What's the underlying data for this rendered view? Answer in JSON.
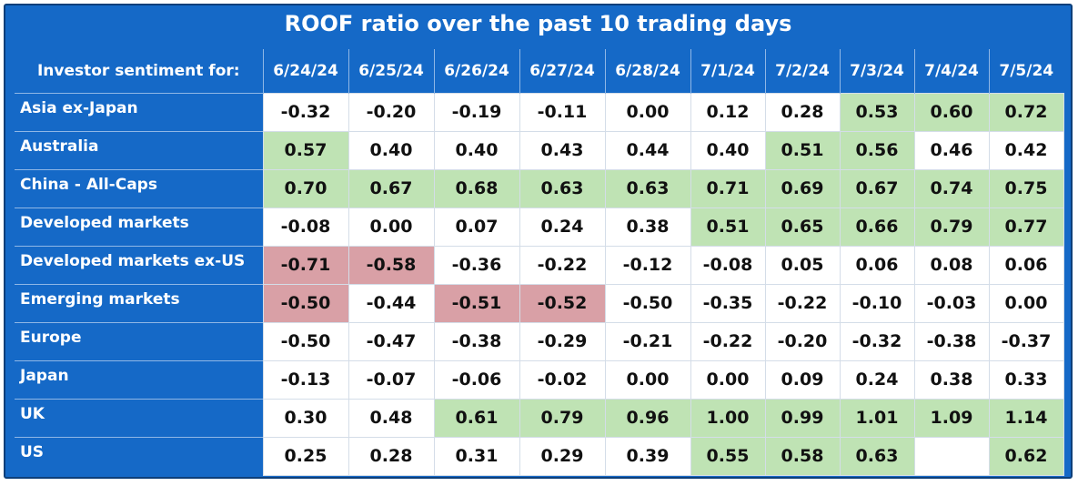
{
  "chart_data": {
    "type": "table",
    "title": "ROOF ratio over the past 10 trading days",
    "corner_label": "Investor sentiment for:",
    "columns": [
      "6/24/24",
      "6/25/24",
      "6/26/24",
      "6/27/24",
      "6/28/24",
      "7/1/24",
      "7/2/24",
      "7/3/24",
      "7/4/24",
      "7/5/24"
    ],
    "rows": [
      {
        "label": "Asia ex-Japan",
        "values": [
          "-0.32",
          "-0.20",
          "-0.19",
          "-0.11",
          "0.00",
          "0.12",
          "0.28",
          "0.53",
          "0.60",
          "0.72"
        ],
        "highlight": [
          "",
          "",
          "",
          "",
          "",
          "",
          "",
          "pos",
          "pos",
          "pos"
        ]
      },
      {
        "label": "Australia",
        "values": [
          "0.57",
          "0.40",
          "0.40",
          "0.43",
          "0.44",
          "0.40",
          "0.51",
          "0.56",
          "0.46",
          "0.42"
        ],
        "highlight": [
          "pos",
          "",
          "",
          "",
          "",
          "",
          "pos",
          "pos",
          "",
          ""
        ]
      },
      {
        "label": "China - All-Caps",
        "values": [
          "0.70",
          "0.67",
          "0.68",
          "0.63",
          "0.63",
          "0.71",
          "0.69",
          "0.67",
          "0.74",
          "0.75"
        ],
        "highlight": [
          "pos",
          "pos",
          "pos",
          "pos",
          "pos",
          "pos",
          "pos",
          "pos",
          "pos",
          "pos"
        ]
      },
      {
        "label": "Developed markets",
        "values": [
          "-0.08",
          "0.00",
          "0.07",
          "0.24",
          "0.38",
          "0.51",
          "0.65",
          "0.66",
          "0.79",
          "0.77"
        ],
        "highlight": [
          "",
          "",
          "",
          "",
          "",
          "pos",
          "pos",
          "pos",
          "pos",
          "pos"
        ]
      },
      {
        "label": "Developed markets ex-US",
        "values": [
          "-0.71",
          "-0.58",
          "-0.36",
          "-0.22",
          "-0.12",
          "-0.08",
          "0.05",
          "0.06",
          "0.08",
          "0.06"
        ],
        "highlight": [
          "neg",
          "neg",
          "",
          "",
          "",
          "",
          "",
          "",
          "",
          ""
        ]
      },
      {
        "label": "Emerging markets",
        "values": [
          "-0.50",
          "-0.44",
          "-0.51",
          "-0.52",
          "-0.50",
          "-0.35",
          "-0.22",
          "-0.10",
          "-0.03",
          "0.00"
        ],
        "highlight": [
          "neg",
          "",
          "neg",
          "neg",
          "",
          "",
          "",
          "",
          "",
          ""
        ]
      },
      {
        "label": "Europe",
        "values": [
          "-0.50",
          "-0.47",
          "-0.38",
          "-0.29",
          "-0.21",
          "-0.22",
          "-0.20",
          "-0.32",
          "-0.38",
          "-0.37"
        ],
        "highlight": [
          "",
          "",
          "",
          "",
          "",
          "",
          "",
          "",
          "",
          ""
        ]
      },
      {
        "label": "Japan",
        "values": [
          "-0.13",
          "-0.07",
          "-0.06",
          "-0.02",
          "0.00",
          "0.00",
          "0.09",
          "0.24",
          "0.38",
          "0.33"
        ],
        "highlight": [
          "",
          "",
          "",
          "",
          "",
          "",
          "",
          "",
          "",
          ""
        ]
      },
      {
        "label": "UK",
        "values": [
          "0.30",
          "0.48",
          "0.61",
          "0.79",
          "0.96",
          "1.00",
          "0.99",
          "1.01",
          "1.09",
          "1.14"
        ],
        "highlight": [
          "",
          "",
          "pos",
          "pos",
          "pos",
          "pos",
          "pos",
          "pos",
          "pos",
          "pos"
        ]
      },
      {
        "label": "US",
        "values": [
          "0.25",
          "0.28",
          "0.31",
          "0.29",
          "0.39",
          "0.55",
          "0.58",
          "0.63",
          "",
          "0.62"
        ],
        "highlight": [
          "",
          "",
          "",
          "",
          "",
          "pos",
          "pos",
          "pos",
          "",
          "pos"
        ]
      }
    ],
    "colors": {
      "header_bg": "#1569c7",
      "positive": "#bfe3b4",
      "negative": "#d9a0a6",
      "neutral": "#ffffff"
    }
  }
}
